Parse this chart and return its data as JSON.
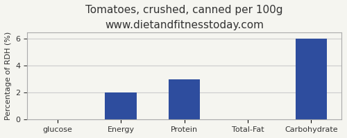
{
  "title": "Tomatoes, crushed, canned per 100g",
  "subtitle": "www.dietandfitnesstoday.com",
  "categories": [
    "glucose",
    "Energy",
    "Protein",
    "Total-Fat",
    "Carbohydrate"
  ],
  "values": [
    0,
    2.0,
    3.0,
    0,
    6.0
  ],
  "bar_color": "#2e4d9e",
  "ylabel": "Percentage of RDH (%)",
  "ylim": [
    0,
    6.5
  ],
  "yticks": [
    0,
    2,
    4,
    6
  ],
  "background_color": "#f5f5f0",
  "title_fontsize": 11,
  "subtitle_fontsize": 9,
  "ylabel_fontsize": 8,
  "tick_fontsize": 8,
  "border_color": "#aaaaaa"
}
